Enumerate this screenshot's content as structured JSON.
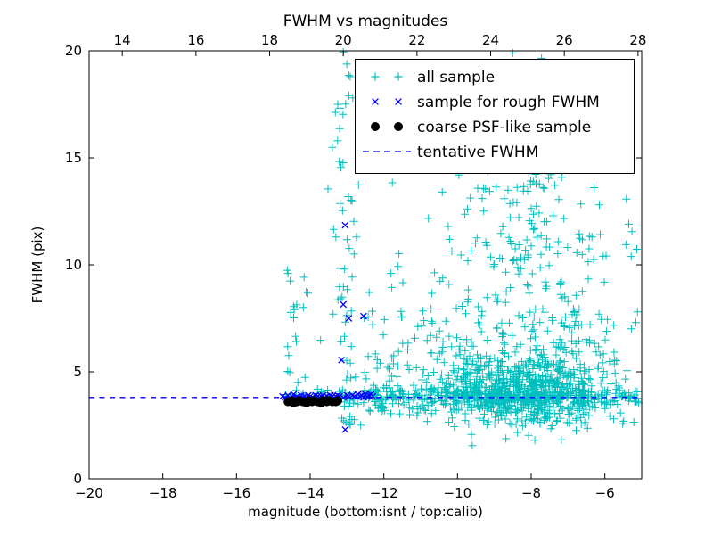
{
  "chart_data": {
    "type": "scatter",
    "title": "FWHM vs magnitudes",
    "xlabel": "magnitude (bottom:isnt / top:calib)",
    "ylabel": "FWHM (pix)",
    "grid": false,
    "axes": {
      "x_bottom": {
        "min": -20,
        "max": -5,
        "ticks": [
          -20,
          -18,
          -16,
          -14,
          -12,
          -10,
          -8,
          -6
        ],
        "tick_labels": [
          "−20",
          "−18",
          "−16",
          "−14",
          "−12",
          "−10",
          "−8",
          "−6"
        ]
      },
      "x_top": {
        "min": 13.1,
        "max": 28.1,
        "ticks": [
          14,
          16,
          18,
          20,
          22,
          24,
          26,
          28
        ],
        "tick_labels": [
          "14",
          "16",
          "18",
          "20",
          "22",
          "24",
          "26",
          "28"
        ]
      },
      "y": {
        "min": 0,
        "max": 20,
        "ticks": [
          0,
          5,
          10,
          15,
          20
        ],
        "tick_labels": [
          "0",
          "5",
          "10",
          "15",
          "20"
        ]
      }
    },
    "colors": {
      "all_sample": "#00bfbf",
      "rough_fwhm": "#0000ff",
      "psf_like": "#000000",
      "tentative_line": "#0000ff",
      "frame": "#000000"
    },
    "legend": {
      "position": "upper right",
      "entries": [
        {
          "label": "all sample",
          "marker": "plus",
          "color": "#00bfbf"
        },
        {
          "label": "sample for rough FWHM",
          "marker": "x",
          "color": "#0000ff"
        },
        {
          "label": "coarse PSF-like sample",
          "marker": "dot",
          "color": "#000000"
        },
        {
          "label": "tentative FWHM",
          "marker": "dashed-line",
          "color": "#0000ff"
        }
      ]
    },
    "tentative_fwhm": 3.8,
    "series": {
      "all_sample": {
        "marker": "plus",
        "color": "#00bfbf",
        "generated": true,
        "clusters": [
          {
            "n": 680,
            "x": {
              "dist": "normal",
              "mean": -8.2,
              "sd": 1.25,
              "min": -11.9,
              "max": -5.02
            },
            "y": {
              "dist": "normal",
              "mean": 4.05,
              "sd": 0.75,
              "min": 2.4,
              "max": 7.2
            }
          },
          {
            "n": 240,
            "x": {
              "dist": "normal",
              "mean": -8.4,
              "sd": 1.4,
              "min": -12.2,
              "max": -5.05
            },
            "y": {
              "dist": "exp",
              "base": 5,
              "scale": 2.6,
              "min": 5,
              "max": 20
            }
          },
          {
            "n": 130,
            "x": {
              "dist": "normal",
              "mean": -8.3,
              "sd": 1.05,
              "min": -10.8,
              "max": -5.8
            },
            "y": {
              "dist": "normal",
              "mean": 13,
              "sd": 3,
              "min": 8,
              "max": 20
            }
          },
          {
            "n": 260,
            "x": {
              "dist": "uniform",
              "min": -12.6,
              "max": -5.05
            },
            "y": {
              "dist": "normal",
              "mean": 3.85,
              "sd": 0.2,
              "min": 3.2,
              "max": 4.6
            }
          },
          {
            "n": 26,
            "x": {
              "dist": "uniform",
              "min": -14.8,
              "max": -12.6
            },
            "y": {
              "dist": "normal",
              "mean": 3.85,
              "sd": 0.15,
              "min": 3.45,
              "max": 4.3
            }
          },
          {
            "n": 70,
            "x": {
              "dist": "normal",
              "mean": -13.0,
              "sd": 0.22,
              "min": -13.55,
              "max": -12.5
            },
            "y": {
              "dist": "power",
              "min": 2.5,
              "max": 20,
              "pow": 1.6
            }
          },
          {
            "n": 85,
            "x": {
              "dist": "uniform",
              "min": -12.55,
              "max": -10.9
            },
            "y": {
              "dist": "exp",
              "base": 2.9,
              "scale": 2.0,
              "min": 2.9,
              "max": 12
            }
          },
          {
            "n": 22,
            "x": {
              "dist": "normal",
              "mean": -14.35,
              "sd": 0.3,
              "min": -14.85,
              "max": -13.7
            },
            "y": {
              "dist": "uniform",
              "min": 3.3,
              "max": 9.8
            }
          },
          {
            "n": 24,
            "x": {
              "dist": "uniform",
              "min": -7.3,
              "max": -5.1
            },
            "y": {
              "dist": "uniform",
              "min": 5,
              "max": 12
            }
          },
          {
            "n": 12,
            "x": {
              "dist": "uniform",
              "min": -10.6,
              "max": -5.4
            },
            "y": {
              "dist": "uniform",
              "min": 12,
              "max": 19.5
            }
          },
          {
            "n": 42,
            "x": {
              "dist": "normal",
              "mean": -8.2,
              "sd": 1.5,
              "min": -11.2,
              "max": -5.1
            },
            "y": {
              "dist": "normal",
              "mean": 2.9,
              "sd": 0.45,
              "min": 1.5,
              "max": 3.4
            }
          }
        ],
        "extras": [
          [
            -13.1,
            19.95
          ],
          [
            -8.5,
            19.9
          ],
          [
            -13.25,
            17.5
          ],
          [
            -12.95,
            18.85
          ],
          [
            -6.35,
            11.3
          ],
          [
            -14.6,
            9.6
          ],
          [
            -14.45,
            8.05
          ],
          [
            -5.35,
            11.9
          ],
          [
            -9.6,
            1.55
          ],
          [
            -7.9,
            1.8
          ]
        ]
      },
      "rough_fwhm_sample": {
        "marker": "x",
        "color": "#0000ff",
        "points": [
          [
            -14.75,
            3.85
          ],
          [
            -14.68,
            3.8
          ],
          [
            -14.6,
            3.9
          ],
          [
            -14.55,
            3.75
          ],
          [
            -14.5,
            3.85
          ],
          [
            -14.45,
            3.95
          ],
          [
            -14.4,
            3.8
          ],
          [
            -14.35,
            3.85
          ],
          [
            -14.3,
            3.75
          ],
          [
            -14.25,
            3.9
          ],
          [
            -14.2,
            3.8
          ],
          [
            -14.15,
            3.85
          ],
          [
            -14.1,
            3.8
          ],
          [
            -14.05,
            3.9
          ],
          [
            -14.0,
            3.85
          ],
          [
            -13.95,
            3.8
          ],
          [
            -13.9,
            3.75
          ],
          [
            -13.85,
            3.9
          ],
          [
            -13.8,
            3.85
          ],
          [
            -13.75,
            3.8
          ],
          [
            -13.7,
            3.85
          ],
          [
            -13.65,
            3.9
          ],
          [
            -13.6,
            3.8
          ],
          [
            -13.55,
            3.85
          ],
          [
            -13.5,
            3.8
          ],
          [
            -13.45,
            3.9
          ],
          [
            -13.4,
            3.85
          ],
          [
            -13.35,
            3.8
          ],
          [
            -13.3,
            3.85
          ],
          [
            -13.25,
            3.9
          ],
          [
            -13.2,
            3.85
          ],
          [
            -13.1,
            3.8
          ],
          [
            -13.0,
            3.9
          ],
          [
            -12.95,
            3.85
          ],
          [
            -12.85,
            3.9
          ],
          [
            -12.8,
            3.85
          ],
          [
            -12.7,
            3.95
          ],
          [
            -12.65,
            3.85
          ],
          [
            -12.6,
            3.9
          ],
          [
            -12.55,
            3.8
          ],
          [
            -12.5,
            3.95
          ],
          [
            -12.45,
            3.85
          ],
          [
            -12.4,
            3.9
          ],
          [
            -12.35,
            3.95
          ],
          [
            -12.3,
            3.85
          ],
          [
            -13.05,
            11.85
          ],
          [
            -13.1,
            8.15
          ],
          [
            -12.95,
            7.5
          ],
          [
            -12.55,
            7.6
          ],
          [
            -13.15,
            5.55
          ],
          [
            -13.05,
            2.3
          ]
        ]
      },
      "psf_like_sample": {
        "marker": "dot",
        "color": "#000000",
        "points": [
          [
            -14.6,
            3.6
          ],
          [
            -14.5,
            3.65
          ],
          [
            -14.45,
            3.55
          ],
          [
            -14.35,
            3.6
          ],
          [
            -14.3,
            3.65
          ],
          [
            -14.2,
            3.6
          ],
          [
            -14.1,
            3.55
          ],
          [
            -14.05,
            3.65
          ],
          [
            -13.95,
            3.6
          ],
          [
            -13.9,
            3.65
          ],
          [
            -13.8,
            3.6
          ],
          [
            -13.7,
            3.55
          ],
          [
            -13.65,
            3.65
          ],
          [
            -13.55,
            3.6
          ],
          [
            -13.5,
            3.65
          ],
          [
            -13.4,
            3.6
          ],
          [
            -13.3,
            3.6
          ],
          [
            -13.25,
            3.65
          ]
        ]
      }
    }
  }
}
